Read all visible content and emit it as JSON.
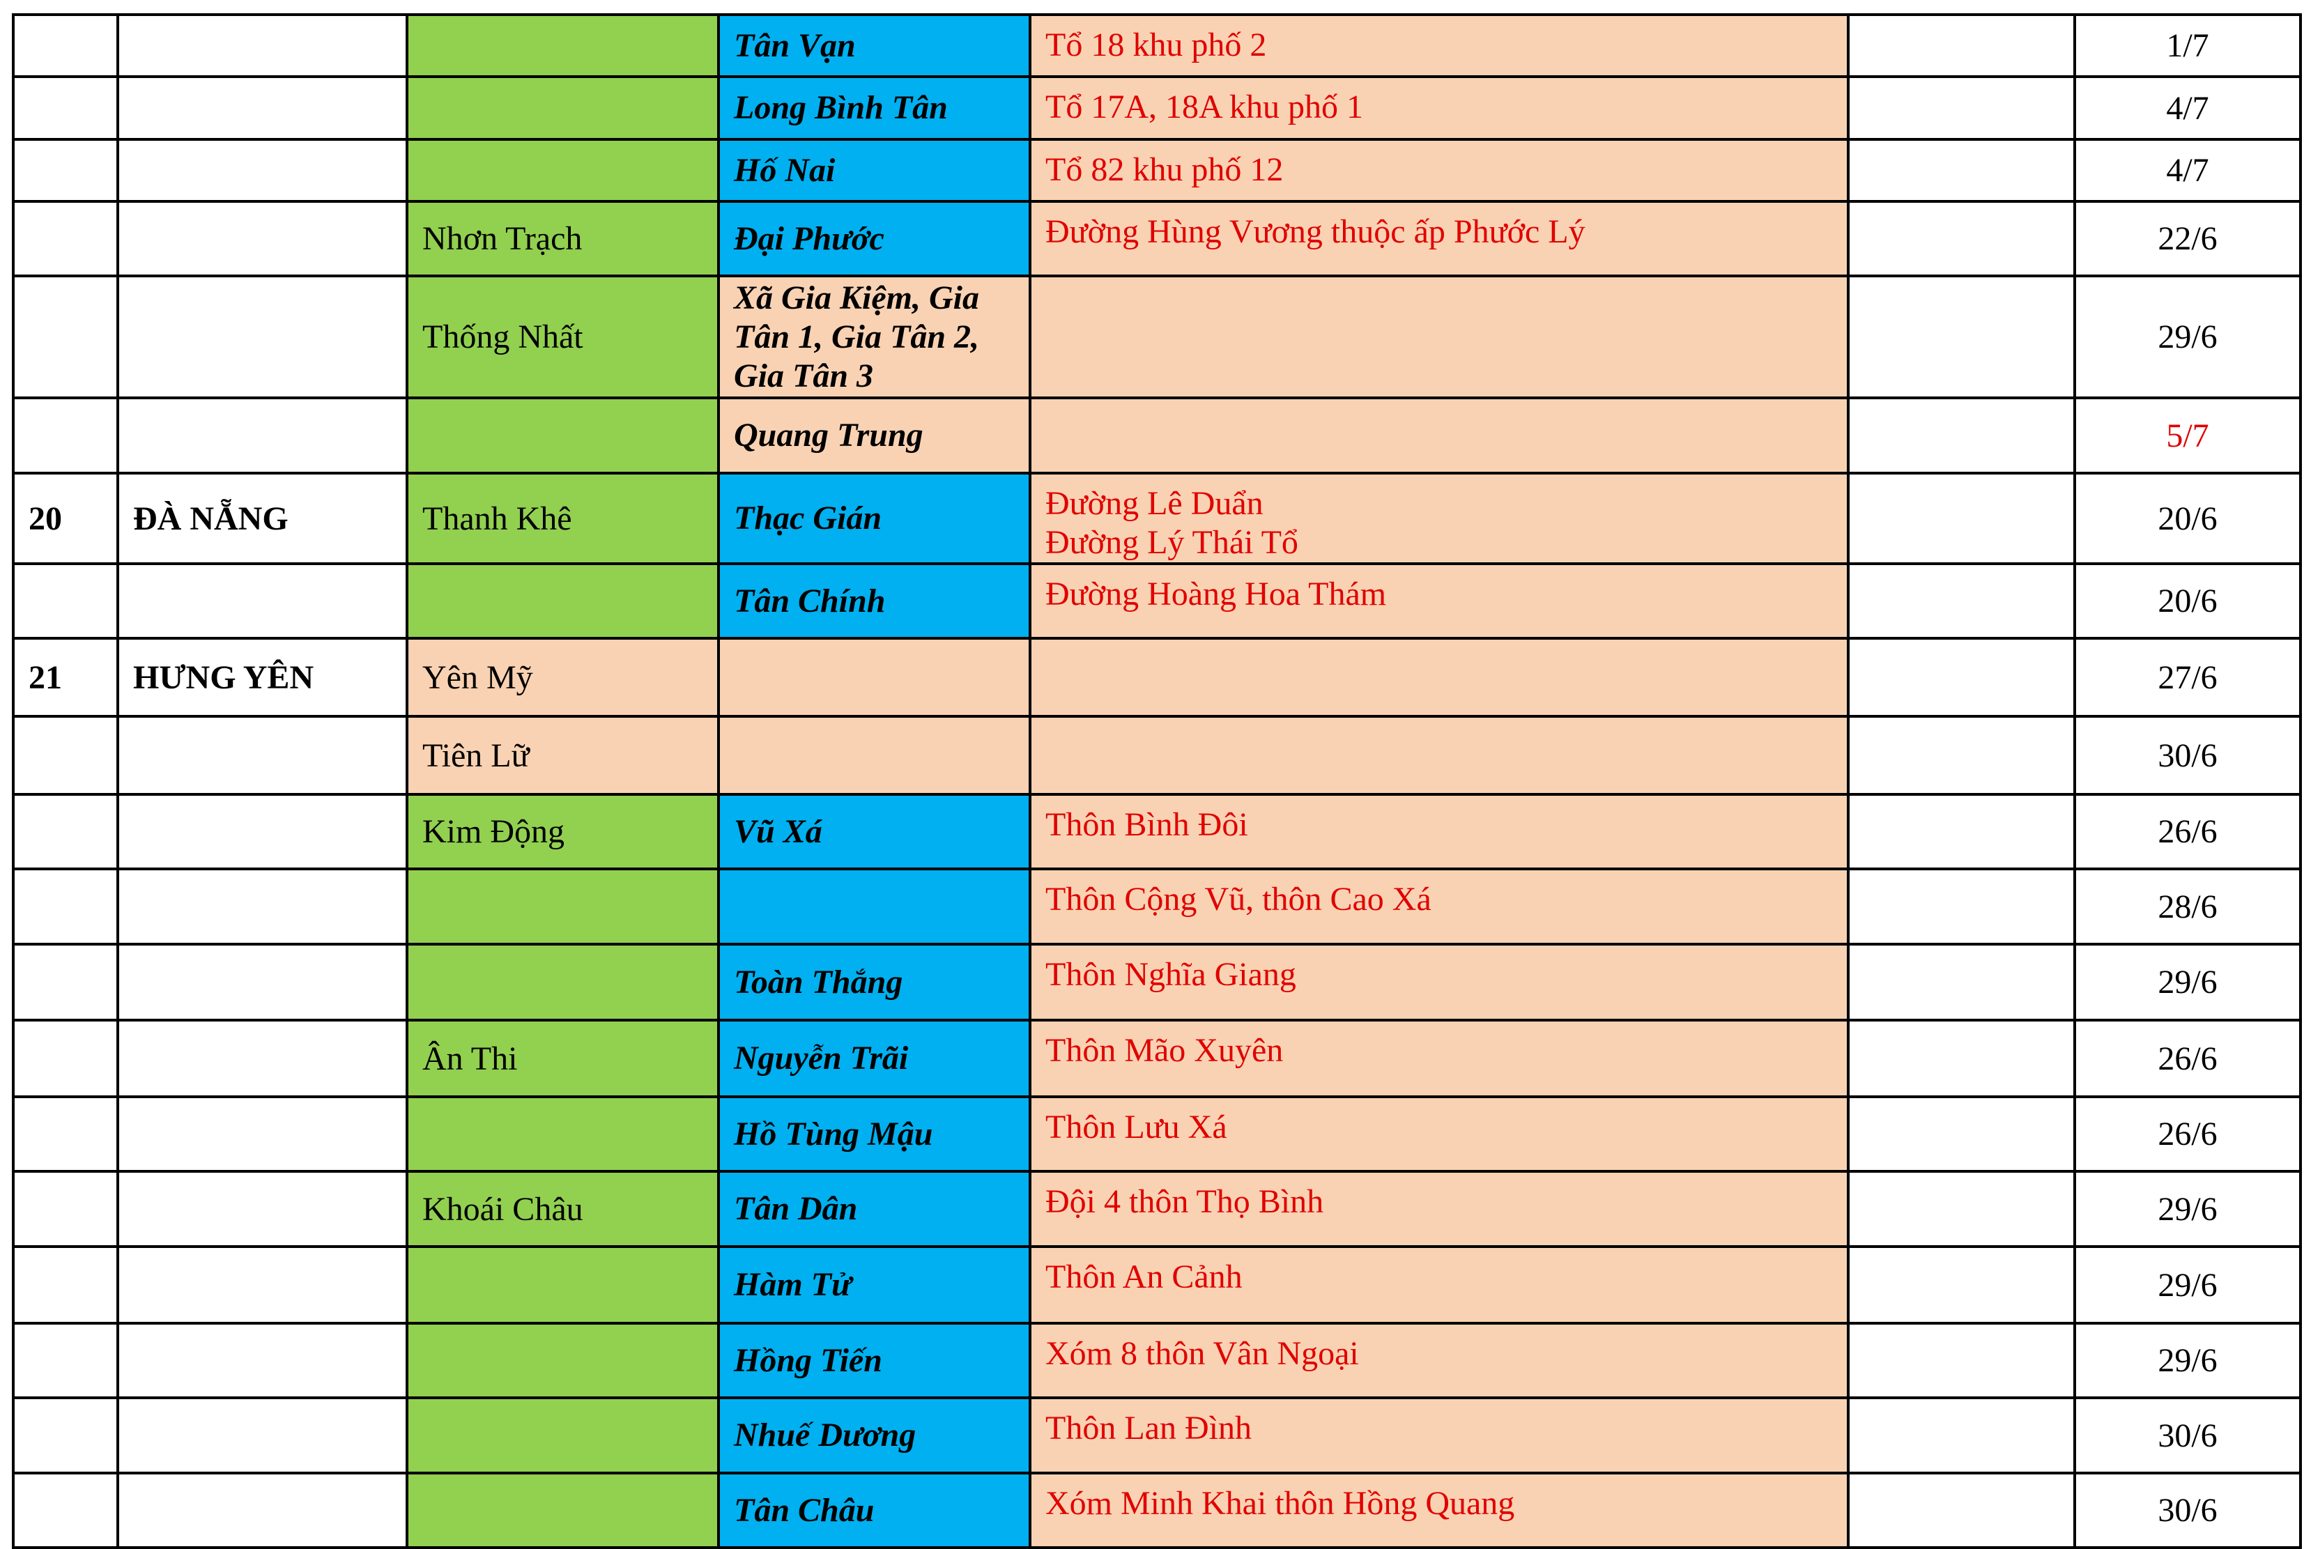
{
  "colors": {
    "district_green": "#92D050",
    "commune_blue": "#00B0F0",
    "peach": "#F9D2B3",
    "address_red": "#E00000"
  },
  "rows": [
    {
      "no": "",
      "province": "",
      "district": "",
      "commune": "Tân Vạn",
      "address": "Tổ 18 khu phố 2",
      "note": "",
      "date": "1/7",
      "district_bg": "green",
      "commune_bg": "blue"
    },
    {
      "no": "",
      "province": "",
      "district": "",
      "commune": "Long Bình Tân",
      "address": "Tổ 17A, 18A khu phố 1",
      "note": "",
      "date": "4/7",
      "district_bg": "green",
      "commune_bg": "blue"
    },
    {
      "no": "",
      "province": "",
      "district": "",
      "commune": "Hố Nai",
      "address": "Tổ 82 khu phố 12",
      "note": "",
      "date": "4/7",
      "district_bg": "green",
      "commune_bg": "blue"
    },
    {
      "no": "",
      "province": "",
      "district": "Nhơn Trạch",
      "commune": "Đại Phước",
      "address": "Đường Hùng Vương thuộc ấp Phước Lý",
      "note": "",
      "date": "22/6",
      "district_bg": "green",
      "commune_bg": "blue"
    },
    {
      "no": "",
      "province": "",
      "district": "Thống Nhất",
      "commune": "Xã Gia Kiệm, Gia Tân 1, Gia Tân 2, Gia Tân 3",
      "address": "",
      "note": "",
      "date": "29/6",
      "district_bg": "green",
      "commune_bg": "peach"
    },
    {
      "no": "",
      "province": "",
      "district": "",
      "commune": "Quang Trung",
      "address": "",
      "note": "",
      "date": "5/7",
      "date_red": true,
      "district_bg": "green",
      "commune_bg": "peach"
    },
    {
      "no": "20",
      "province": "ĐÀ NẴNG",
      "district": "Thanh Khê",
      "commune": "Thạc Gián",
      "address": "Đường Lê Duẩn\nĐường Lý Thái Tổ",
      "note": "",
      "date": "20/6",
      "district_bg": "green",
      "commune_bg": "blue"
    },
    {
      "no": "",
      "province": "",
      "district": "",
      "commune": "Tân Chính",
      "address": "Đường Hoàng Hoa Thám",
      "note": "",
      "date": "20/6",
      "district_bg": "green",
      "commune_bg": "blue"
    },
    {
      "no": "21",
      "province": "HƯNG YÊN",
      "district": "Yên Mỹ",
      "commune": "",
      "address": "",
      "note": "",
      "date": "27/6",
      "district_bg": "peach",
      "commune_bg": "peach"
    },
    {
      "no": "",
      "province": "",
      "district": "Tiên Lữ",
      "commune": "",
      "address": "",
      "note": "",
      "date": "30/6",
      "district_bg": "peach",
      "commune_bg": "peach"
    },
    {
      "no": "",
      "province": "",
      "district": "Kim Động",
      "commune": "Vũ Xá",
      "address": "Thôn Bình Đôi",
      "note": "",
      "date": "26/6",
      "district_bg": "green",
      "commune_bg": "blue"
    },
    {
      "no": "",
      "province": "",
      "district": "",
      "commune": "",
      "address": "Thôn Cộng Vũ, thôn Cao Xá",
      "note": "",
      "date": "28/6",
      "district_bg": "green",
      "commune_bg": "blue"
    },
    {
      "no": "",
      "province": "",
      "district": "",
      "commune": "Toàn Thắng",
      "address": "Thôn Nghĩa Giang",
      "note": "",
      "date": "29/6",
      "district_bg": "green",
      "commune_bg": "blue"
    },
    {
      "no": "",
      "province": "",
      "district": "Ân Thi",
      "commune": "Nguyễn Trãi",
      "address": "Thôn Mão Xuyên",
      "note": "",
      "date": "26/6",
      "district_bg": "green",
      "commune_bg": "blue"
    },
    {
      "no": "",
      "province": "",
      "district": "",
      "commune": "Hồ Tùng Mậu",
      "address": "Thôn Lưu Xá",
      "note": "",
      "date": "26/6",
      "district_bg": "green",
      "commune_bg": "blue"
    },
    {
      "no": "",
      "province": "",
      "district": "Khoái Châu",
      "commune": "Tân Dân",
      "address": "Đội 4 thôn Thọ Bình",
      "note": "",
      "date": "29/6",
      "district_bg": "green",
      "commune_bg": "blue"
    },
    {
      "no": "",
      "province": "",
      "district": "",
      "commune": "Hàm Tử",
      "address": "Thôn An Cảnh",
      "note": "",
      "date": "29/6",
      "district_bg": "green",
      "commune_bg": "blue"
    },
    {
      "no": "",
      "province": "",
      "district": "",
      "commune": "Hồng Tiến",
      "address": "Xóm 8 thôn Vân Ngoại",
      "note": "",
      "date": "29/6",
      "district_bg": "green",
      "commune_bg": "blue"
    },
    {
      "no": "",
      "province": "",
      "district": "",
      "commune": "Nhuế Dương",
      "address": "Thôn Lan Đình",
      "note": "",
      "date": "30/6",
      "district_bg": "green",
      "commune_bg": "blue"
    },
    {
      "no": "",
      "province": "",
      "district": "",
      "commune": "Tân Châu",
      "address": "Xóm Minh Khai thôn Hồng Quang",
      "note": "",
      "date": "30/6",
      "district_bg": "green",
      "commune_bg": "blue"
    }
  ]
}
